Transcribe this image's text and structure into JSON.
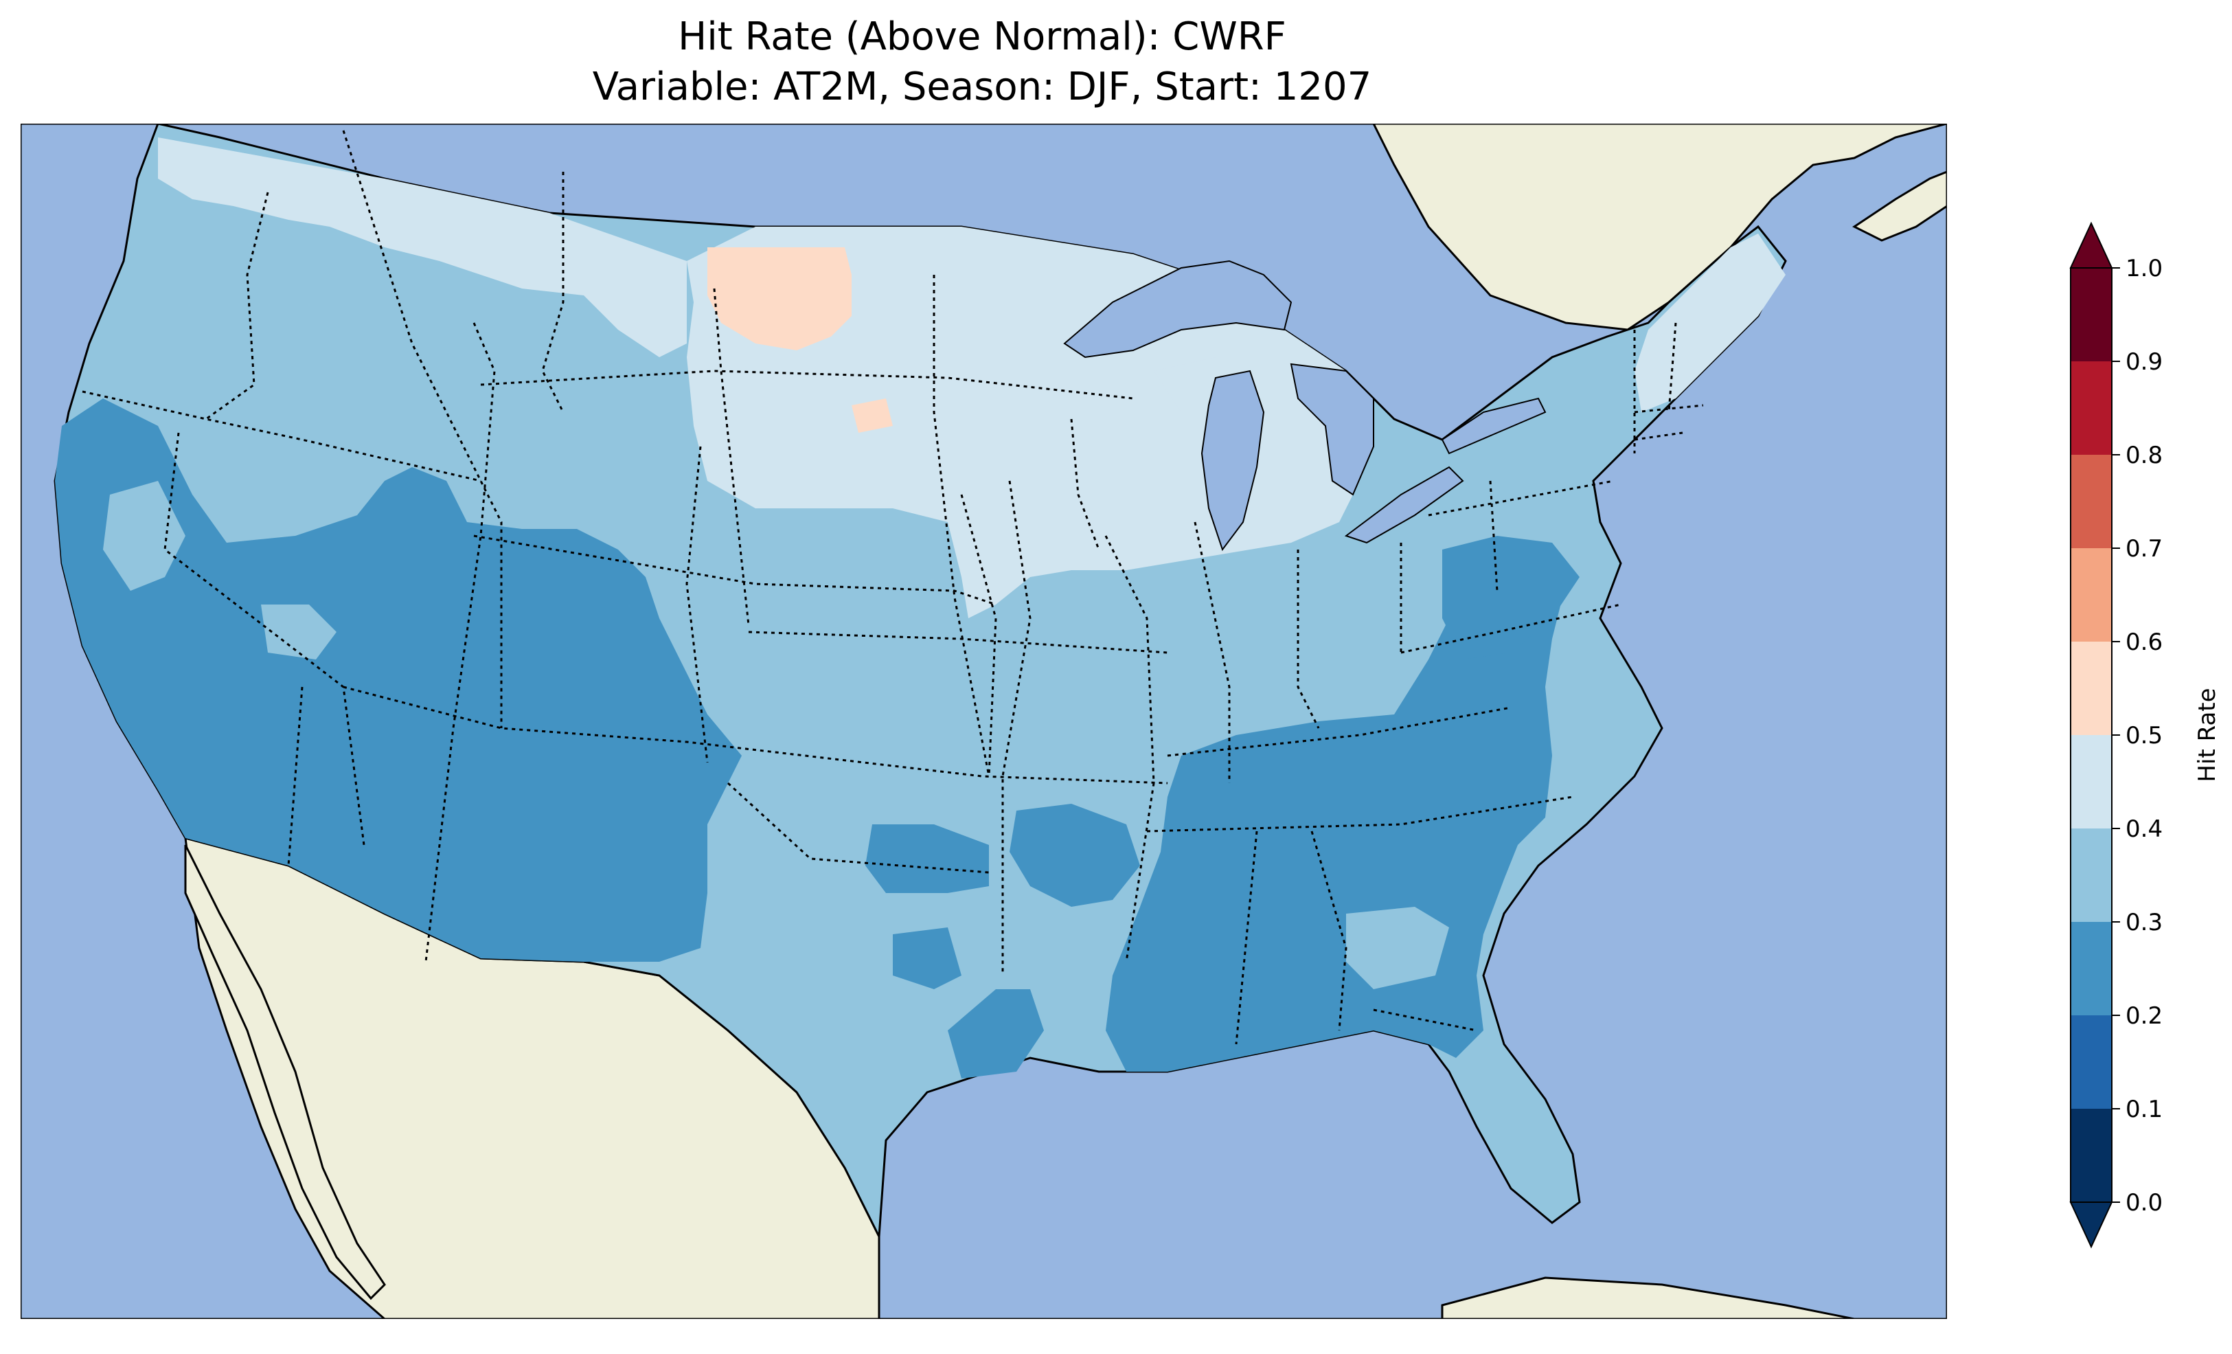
{
  "title": {
    "line1": "Hit Rate (Above Normal): CWRF",
    "line2": "Variable: AT2M, Season: DJF, Start: 1207"
  },
  "colors": {
    "ocean": "#97b6e1",
    "land": "#efefdb",
    "lakes": "#97b6e1"
  },
  "colorbar": {
    "label": "Hit Rate",
    "ticks": [
      "0.0",
      "0.1",
      "0.2",
      "0.3",
      "0.4",
      "0.5",
      "0.6",
      "0.7",
      "0.8",
      "0.9",
      "1.0"
    ],
    "bins": [
      {
        "range": [
          0.0,
          0.1
        ],
        "color": "#053061"
      },
      {
        "range": [
          0.1,
          0.2
        ],
        "color": "#2166ac"
      },
      {
        "range": [
          0.2,
          0.3
        ],
        "color": "#4393c3"
      },
      {
        "range": [
          0.3,
          0.4
        ],
        "color": "#92c5de"
      },
      {
        "range": [
          0.4,
          0.5
        ],
        "color": "#d1e5f0"
      },
      {
        "range": [
          0.5,
          0.6
        ],
        "color": "#fddbc7"
      },
      {
        "range": [
          0.6,
          0.7
        ],
        "color": "#f4a582"
      },
      {
        "range": [
          0.7,
          0.8
        ],
        "color": "#d6604d"
      },
      {
        "range": [
          0.8,
          0.9
        ],
        "color": "#b2182b"
      },
      {
        "range": [
          0.9,
          1.0
        ],
        "color": "#67001f"
      }
    ],
    "extend": "both"
  },
  "map_regions": [
    {
      "name": "upper-midwest-plains",
      "bin": "0.4-0.5"
    },
    {
      "name": "western-dakotas",
      "bin": "0.5-0.6"
    },
    {
      "name": "central-plains",
      "bin": "0.3-0.4"
    },
    {
      "name": "southwest-interior",
      "bin": "0.2-0.3"
    },
    {
      "name": "southeast",
      "bin": "0.2-0.3"
    },
    {
      "name": "northeast",
      "bin": "0.3-0.4"
    }
  ]
}
